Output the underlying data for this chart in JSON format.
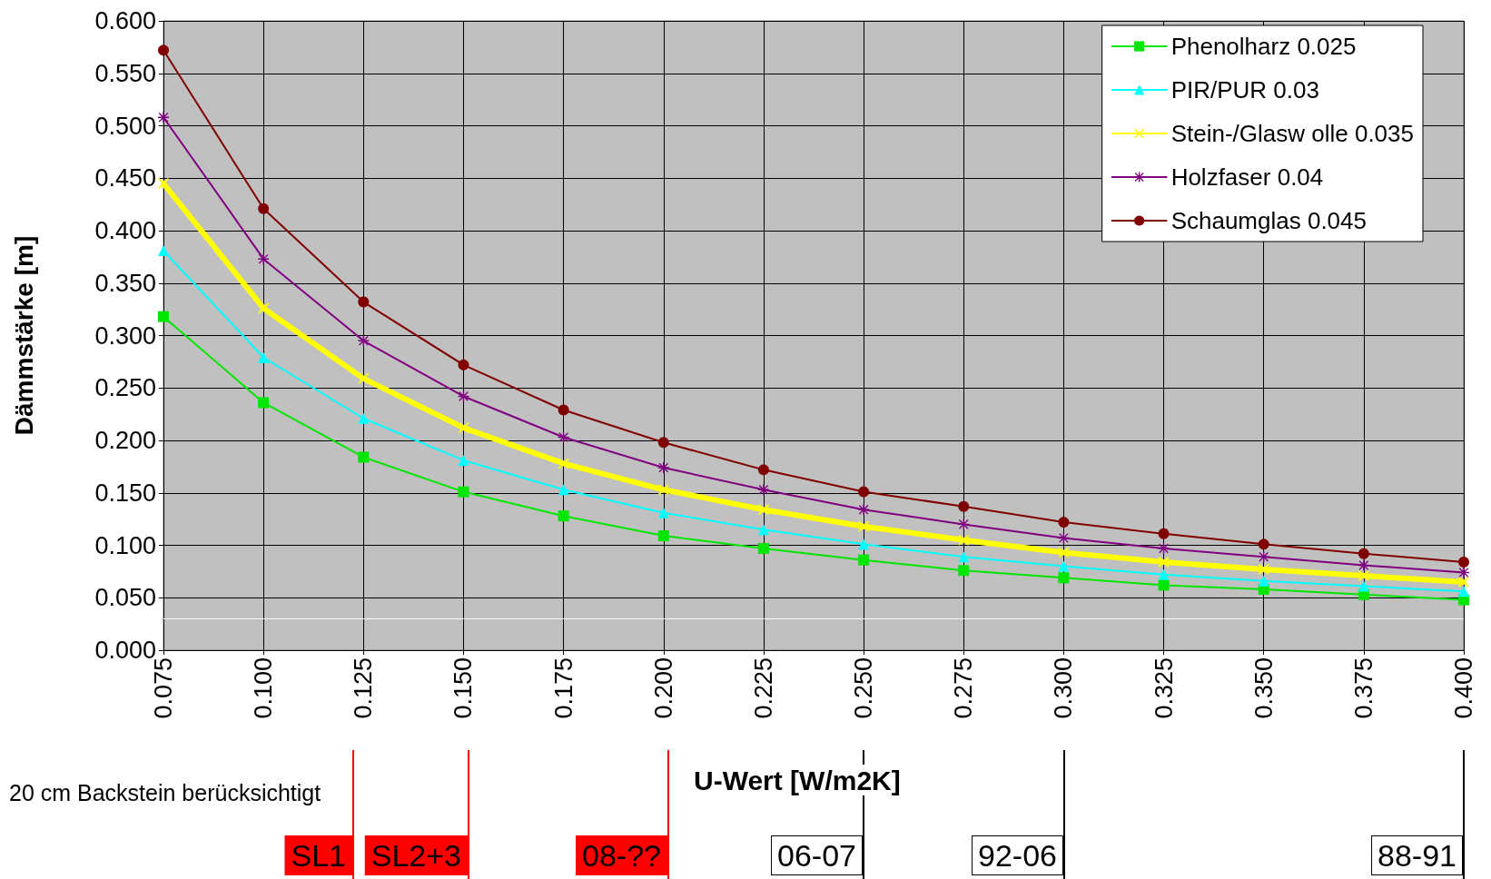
{
  "chart_data": {
    "type": "line",
    "xlabel": "U-Wert [W/m2K]",
    "ylabel": "Dämmstärke [m]",
    "x": [
      0.075,
      0.1,
      0.125,
      0.15,
      0.175,
      0.2,
      0.225,
      0.25,
      0.275,
      0.3,
      0.325,
      0.35,
      0.375,
      0.4
    ],
    "xlim": [
      0.075,
      0.4
    ],
    "xticks": [
      {
        "value": 0.075,
        "label": "0.075"
      },
      {
        "value": 0.1,
        "label": "0.100"
      },
      {
        "value": 0.125,
        "label": "0.125"
      },
      {
        "value": 0.15,
        "label": "0.150"
      },
      {
        "value": 0.175,
        "label": "0.175"
      },
      {
        "value": 0.2,
        "label": "0.200"
      },
      {
        "value": 0.225,
        "label": "0.225"
      },
      {
        "value": 0.25,
        "label": "0.250"
      },
      {
        "value": 0.275,
        "label": "0.275"
      },
      {
        "value": 0.3,
        "label": "0.300"
      },
      {
        "value": 0.325,
        "label": "0.325"
      },
      {
        "value": 0.35,
        "label": "0.350"
      },
      {
        "value": 0.375,
        "label": "0.375"
      },
      {
        "value": 0.4,
        "label": "0.400"
      }
    ],
    "ylim": [
      0,
      0.6
    ],
    "yticks": [
      {
        "value": 0,
        "label": "0.000"
      },
      {
        "value": 0.05,
        "label": "0.050"
      },
      {
        "value": 0.1,
        "label": "0.100"
      },
      {
        "value": 0.15,
        "label": "0.150"
      },
      {
        "value": 0.2,
        "label": "0.200"
      },
      {
        "value": 0.25,
        "label": "0.250"
      },
      {
        "value": 0.3,
        "label": "0.300"
      },
      {
        "value": 0.35,
        "label": "0.350"
      },
      {
        "value": 0.4,
        "label": "0.400"
      },
      {
        "value": 0.45,
        "label": "0.450"
      },
      {
        "value": 0.5,
        "label": "0.500"
      },
      {
        "value": 0.55,
        "label": "0.550"
      },
      {
        "value": 0.6,
        "label": "0.600"
      }
    ],
    "grid": true,
    "legend": "top right",
    "line_style": "solid",
    "series": [
      {
        "name": "Phenolharz 0.025",
        "color": "#00e600",
        "marker": "square",
        "values": [
          0.318,
          0.236,
          0.184,
          0.151,
          0.128,
          0.109,
          0.097,
          0.086,
          0.076,
          0.069,
          0.062,
          0.058,
          0.053,
          0.048
        ]
      },
      {
        "name": "PIR/PUR 0.03",
        "color": "#00ffff",
        "marker": "triangle",
        "values": [
          0.381,
          0.279,
          0.221,
          0.181,
          0.153,
          0.131,
          0.115,
          0.101,
          0.089,
          0.08,
          0.072,
          0.066,
          0.061,
          0.056
        ]
      },
      {
        "name": "Stein-/Glasw olle 0.035",
        "color": "#ffff00",
        "marker": "cross",
        "values": [
          0.445,
          0.326,
          0.259,
          0.212,
          0.178,
          0.153,
          0.134,
          0.118,
          0.105,
          0.093,
          0.084,
          0.077,
          0.071,
          0.065
        ]
      },
      {
        "name": "Holzfaser 0.04",
        "color": "#800080",
        "marker": "star",
        "values": [
          0.508,
          0.373,
          0.295,
          0.242,
          0.203,
          0.174,
          0.153,
          0.134,
          0.12,
          0.107,
          0.097,
          0.089,
          0.081,
          0.074
        ]
      },
      {
        "name": "Schaumglas 0.045",
        "color": "#800000",
        "marker": "circle",
        "values": [
          0.572,
          0.421,
          0.332,
          0.272,
          0.229,
          0.198,
          0.172,
          0.151,
          0.137,
          0.122,
          0.111,
          0.101,
          0.092,
          0.084
        ]
      }
    ],
    "ref_lines": [
      {
        "axis": "y",
        "value": 0.03,
        "label": null,
        "color": "#ffffff"
      }
    ],
    "annotations": [
      "20 cm Backstein berücksichtigt",
      "SL1",
      "SL2+3",
      "08-??",
      "06-07",
      "92-06",
      "88-91"
    ]
  }
}
